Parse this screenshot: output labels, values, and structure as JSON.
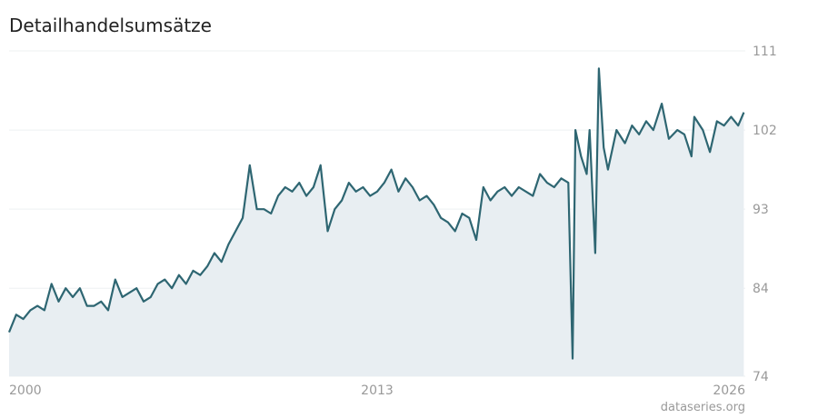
{
  "chart_data": {
    "type": "line",
    "title": "Detailhandelsumsätze",
    "source": "dataseries.org",
    "x": [
      2000,
      2000.25,
      2000.5,
      2000.75,
      2001,
      2001.25,
      2001.5,
      2001.75,
      2002,
      2002.25,
      2002.5,
      2002.75,
      2003,
      2003.25,
      2003.5,
      2003.75,
      2004,
      2004.25,
      2004.5,
      2004.75,
      2005,
      2005.25,
      2005.5,
      2005.75,
      2006,
      2006.25,
      2006.5,
      2006.75,
      2007,
      2007.25,
      2007.5,
      2007.75,
      2008,
      2008.25,
      2008.5,
      2008.75,
      2009,
      2009.25,
      2009.5,
      2009.75,
      2010,
      2010.25,
      2010.5,
      2010.75,
      2011,
      2011.25,
      2011.5,
      2011.75,
      2012,
      2012.25,
      2012.5,
      2012.75,
      2013,
      2013.25,
      2013.5,
      2013.75,
      2014,
      2014.25,
      2014.5,
      2014.75,
      2015,
      2015.25,
      2015.5,
      2015.75,
      2016,
      2016.25,
      2016.5,
      2016.75,
      2017,
      2017.25,
      2017.5,
      2017.75,
      2018,
      2018.25,
      2018.5,
      2018.75,
      2019,
      2019.25,
      2019.5,
      2019.75,
      2019.9,
      2020,
      2020.2,
      2020.4,
      2020.5,
      2020.7,
      2020.83,
      2021,
      2021.15,
      2021.45,
      2021.75,
      2022,
      2022.25,
      2022.5,
      2022.75,
      2023.05,
      2023.3,
      2023.6,
      2023.85,
      2024.1,
      2024.2,
      2024.5,
      2024.75,
      2025,
      2025.25,
      2025.5,
      2025.75,
      2025.95
    ],
    "values": [
      79,
      81,
      80.5,
      81.5,
      82,
      81.5,
      84.5,
      82.5,
      84,
      83,
      84,
      82,
      82,
      82.5,
      81.5,
      85,
      83,
      83.5,
      84,
      82.5,
      83,
      84.5,
      85,
      84,
      85.5,
      84.5,
      86,
      85.5,
      86.5,
      88,
      87,
      89,
      90.5,
      92,
      98,
      93,
      93,
      92.5,
      94.5,
      95.5,
      95,
      96,
      94.5,
      95.5,
      98,
      90.5,
      93,
      94,
      96,
      95,
      95.5,
      94.5,
      95,
      96,
      97.5,
      95,
      96.5,
      95.5,
      94,
      94.5,
      93.5,
      92,
      91.5,
      90.5,
      92.5,
      92,
      89.5,
      95.5,
      94,
      95,
      95.5,
      94.5,
      95.5,
      95,
      94.5,
      97,
      96,
      95.5,
      96.5,
      96,
      76,
      102,
      99,
      97,
      102,
      88,
      109,
      100,
      97.5,
      102,
      100.5,
      102.5,
      101.5,
      103,
      102,
      105,
      101,
      102,
      101.5,
      99,
      103.5,
      102,
      99.5,
      103,
      102.5,
      103.5,
      102.5,
      104
    ],
    "color": "#2e6672",
    "fill": "#e8eef2",
    "xlim": [
      2000,
      2026
    ],
    "xticks": [
      2000,
      2013,
      2026
    ],
    "ylim": [
      74,
      111
    ],
    "yticks": [
      74,
      84,
      93,
      102,
      111
    ],
    "grid": true
  }
}
